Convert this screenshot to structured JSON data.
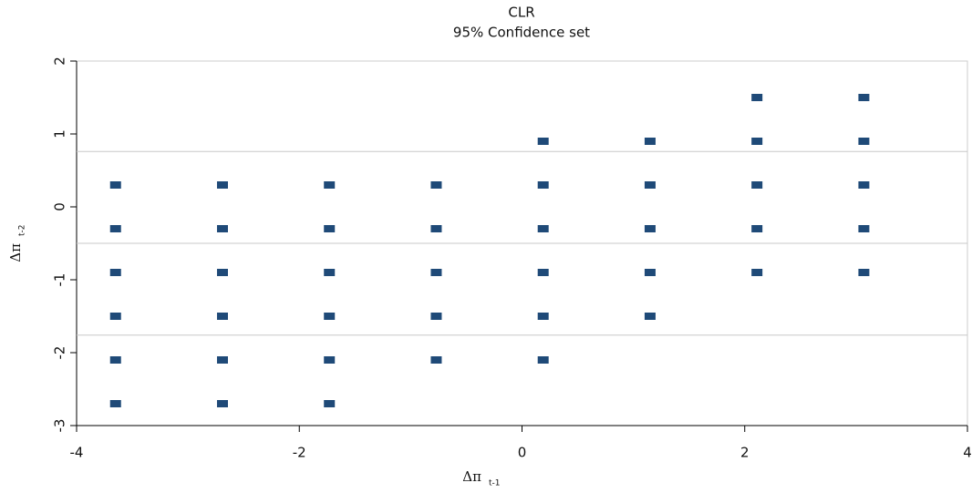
{
  "chart_data": {
    "type": "scatter",
    "title": "CLR",
    "subtitle": "95% Confidence set",
    "xlabel": {
      "main": "Δπ",
      "sub": "t-1"
    },
    "ylabel": {
      "main": "Δπ",
      "sub": "t-2"
    },
    "xlim": [
      -4,
      4
    ],
    "xticks": [
      -4,
      -2,
      0,
      2,
      4
    ],
    "ylim": [
      -3,
      2
    ],
    "yticks": [
      -3,
      -2,
      -1,
      0,
      1,
      2
    ],
    "reference_lines": [
      0.76,
      -0.5,
      -1.76
    ],
    "series": [
      {
        "color": "#1f4a78",
        "x": [
          -3.65,
          -3.65,
          -3.65,
          -3.65,
          -3.65,
          -3.65,
          -2.69,
          -2.69,
          -2.69,
          -2.69,
          -2.69,
          -2.69,
          -1.73,
          -1.73,
          -1.73,
          -1.73,
          -1.73,
          -1.73,
          -0.77,
          -0.77,
          -0.77,
          -0.77,
          -0.77,
          0.19,
          0.19,
          0.19,
          0.19,
          0.19,
          0.19,
          1.15,
          1.15,
          1.15,
          1.15,
          1.15,
          2.11,
          2.11,
          2.11,
          2.11,
          2.11,
          3.07,
          3.07,
          3.07,
          3.07,
          3.07
        ],
        "values": [
          0.3,
          -0.3,
          -0.9,
          -1.5,
          -2.1,
          -2.7,
          0.3,
          -0.3,
          -0.9,
          -1.5,
          -2.1,
          -2.7,
          0.3,
          -0.3,
          -0.9,
          -1.5,
          -2.1,
          -2.7,
          0.3,
          -0.3,
          -0.9,
          -1.5,
          -2.1,
          0.9,
          0.3,
          -0.3,
          -0.9,
          -1.5,
          -2.1,
          0.9,
          0.3,
          -0.3,
          -0.9,
          -1.5,
          1.5,
          0.9,
          0.3,
          -0.3,
          -0.9,
          1.5,
          0.9,
          0.3,
          -0.3,
          -0.9
        ]
      }
    ]
  }
}
